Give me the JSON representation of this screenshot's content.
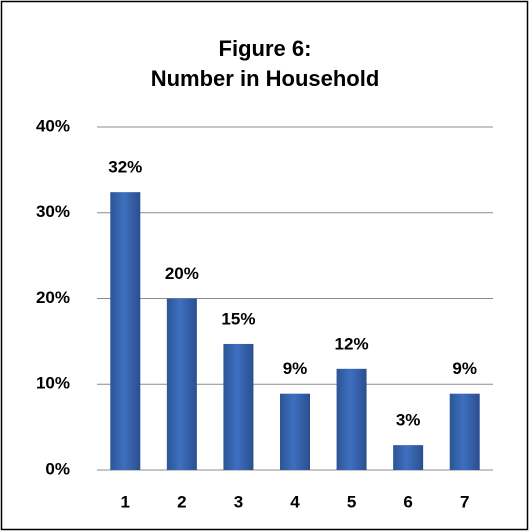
{
  "chart_data": {
    "type": "bar",
    "title": "Figure 6:",
    "subtitle": "Number in Household",
    "categories": [
      "1",
      "2",
      "3",
      "4",
      "5",
      "6",
      "7"
    ],
    "values": [
      32.4,
      20,
      14.7,
      8.9,
      11.8,
      2.9,
      8.9
    ],
    "value_labels": [
      "32%",
      "20%",
      "15%",
      "9%",
      "12%",
      "3%",
      "9%"
    ],
    "color": "#3f6fbf",
    "ylim": [
      0,
      40
    ],
    "yticks": [
      {
        "value": 0,
        "label": "0%"
      },
      {
        "value": 10,
        "label": "10%"
      },
      {
        "value": 20,
        "label": "20%"
      },
      {
        "value": 30,
        "label": "30%"
      },
      {
        "value": 40,
        "label": "40%"
      }
    ],
    "grid": true
  }
}
